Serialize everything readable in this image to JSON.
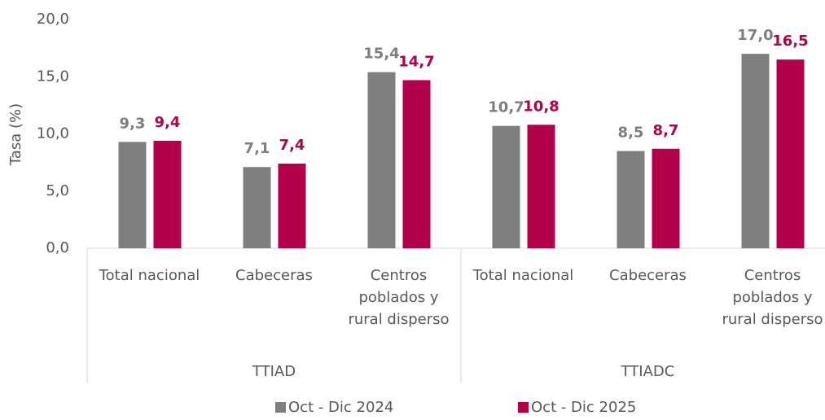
{
  "chart_data": {
    "type": "bar",
    "y_label": "Tasa (%)",
    "categories": [
      "Total nacional",
      "Cabeceras",
      "Centros poblados y rural disperso",
      "Total nacional",
      "Cabeceras",
      "Centros poblados y rural disperso"
    ],
    "group_labels": [
      "TTIAD",
      "TTIADC"
    ],
    "series": [
      {
        "name": "Oct - Dic 2024",
        "color": "#7f7f7f",
        "values": [
          9.3,
          7.1,
          15.4,
          10.7,
          8.5,
          17.0
        ],
        "value_labels": [
          "9,3",
          "7,1",
          "15,4",
          "10,7",
          "8,5",
          "17,0"
        ]
      },
      {
        "name": "Oct - Dic 2025",
        "color": "#b3004b",
        "values": [
          9.4,
          7.4,
          14.7,
          10.8,
          8.7,
          16.5
        ],
        "value_labels": [
          "9,4",
          "7,4",
          "14,7",
          "10,8",
          "8,7",
          "16,5"
        ]
      }
    ],
    "ylim": [
      0,
      20
    ],
    "yticks": [
      {
        "value": 0,
        "label": "0,0"
      },
      {
        "value": 5,
        "label": "5,0"
      },
      {
        "value": 10,
        "label": "10,0"
      },
      {
        "value": 15,
        "label": "15,0"
      },
      {
        "value": 20,
        "label": "20,0"
      }
    ],
    "grid": false
  }
}
